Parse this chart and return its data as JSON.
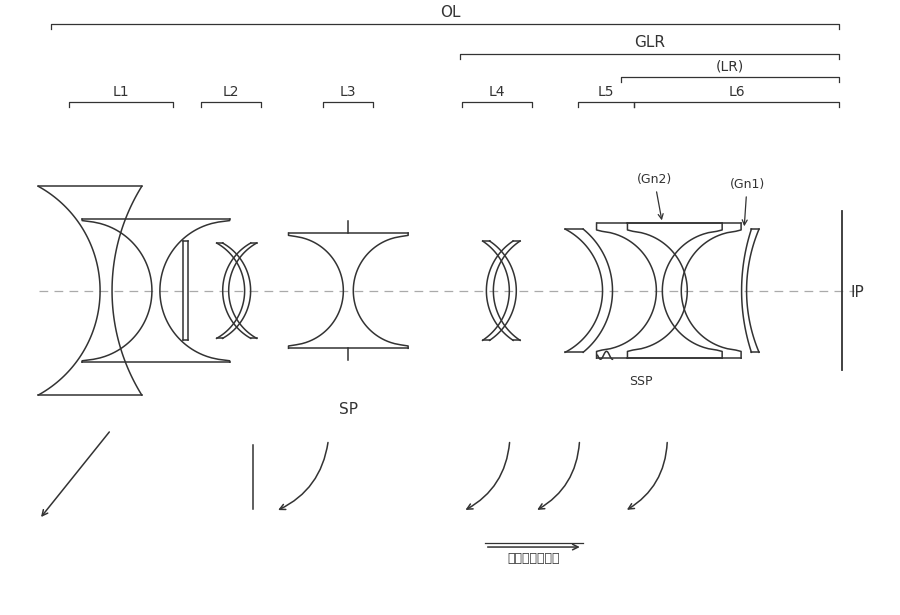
{
  "bg_color": "#ffffff",
  "line_color": "#333333",
  "OA": 290,
  "OL_text": "OL",
  "GLR_text": "GLR",
  "LR_text": "(LR)",
  "IP_text": "IP",
  "SSP_text": "SSP",
  "Gn1_text": "(Gn1)",
  "Gn2_text": "(Gn2)",
  "L1_text": "L1",
  "L2_text": "L2",
  "L3_text": "L3",
  "L4_text": "L4",
  "L5_text": "L5",
  "L6_text": "L6",
  "SP_text": "SP",
  "focus_text": "（フォーカス）"
}
